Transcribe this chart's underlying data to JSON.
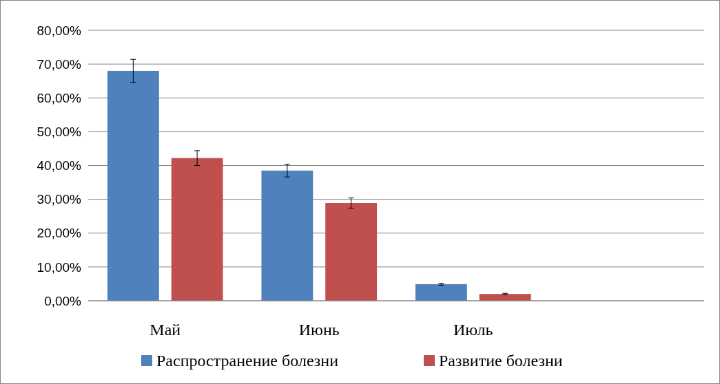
{
  "chart_data": {
    "type": "bar",
    "categories": [
      "Май",
      "Июнь",
      "Июль",
      null
    ],
    "series": [
      {
        "name": "Распространение болезни",
        "color": "#4f81bd",
        "values": [
          68,
          38.5,
          4.9,
          null
        ],
        "errors": [
          3.4,
          1.9,
          0.3,
          null
        ]
      },
      {
        "name": "Развитие болезни",
        "color": "#c0504d",
        "values": [
          42.2,
          28.9,
          2.0,
          null
        ],
        "errors": [
          2.2,
          1.5,
          0.2,
          null
        ]
      }
    ],
    "ylim": [
      0,
      80
    ],
    "yticks": [
      {
        "value": 0,
        "label": "0,00%"
      },
      {
        "value": 10,
        "label": "10,00%"
      },
      {
        "value": 20,
        "label": "20,00%"
      },
      {
        "value": 30,
        "label": "30,00%"
      },
      {
        "value": 40,
        "label": "40,00%"
      },
      {
        "value": 50,
        "label": "50,00%"
      },
      {
        "value": 60,
        "label": "60,00%"
      },
      {
        "value": 70,
        "label": "70,00%"
      },
      {
        "value": 80,
        "label": "80,00%"
      }
    ],
    "grid": "y",
    "legend": "bottom"
  }
}
